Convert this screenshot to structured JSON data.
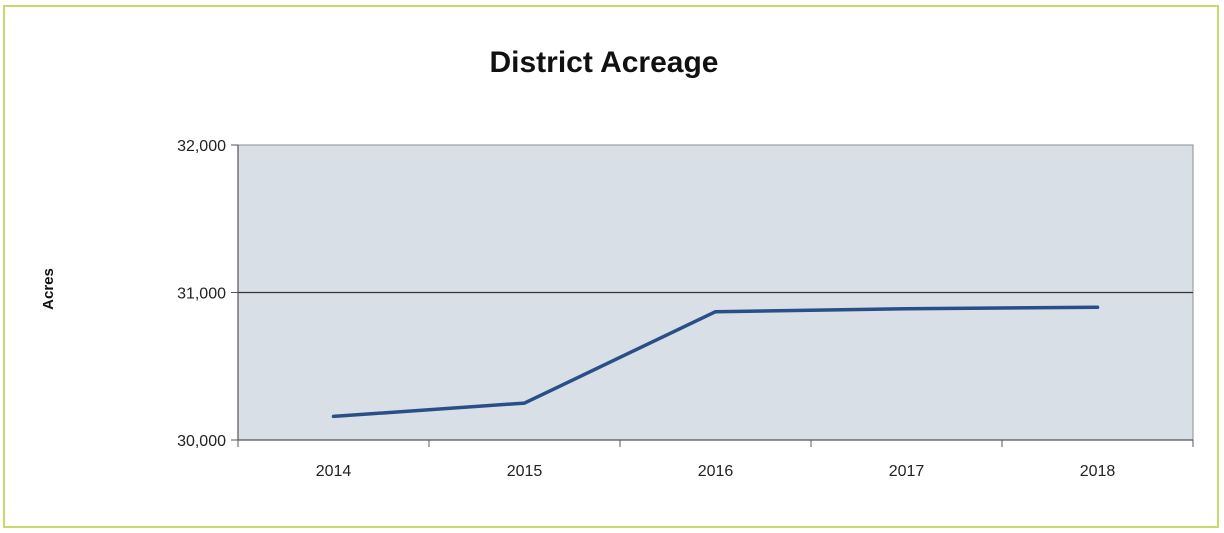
{
  "chart_data": {
    "type": "line",
    "title": "District Acreage",
    "xlabel": "",
    "ylabel": "Acres",
    "categories": [
      "2014",
      "2015",
      "2016",
      "2017",
      "2018"
    ],
    "series": [
      {
        "values": [
          30160,
          30250,
          30870,
          30890,
          30900
        ]
      }
    ],
    "ylim": [
      30000,
      32000
    ],
    "yticks": [
      30000,
      31000,
      32000
    ],
    "ytick_labels": [
      "30,000",
      "31,000",
      "32,000"
    ],
    "grid": "horizontal major gridline at 31,000",
    "legend": "none",
    "colors": {
      "line": "#2a4f86",
      "plot_background": "#d9dfe6",
      "frame_border": "#c9d96a"
    }
  }
}
